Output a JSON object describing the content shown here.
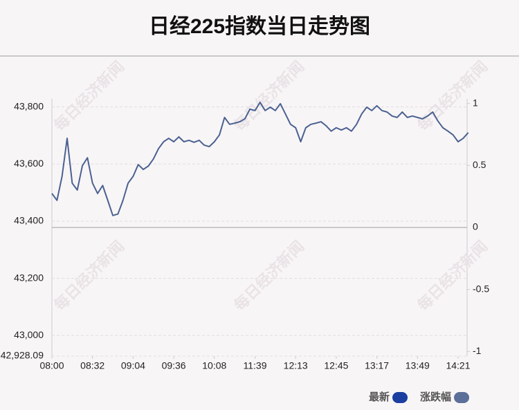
{
  "chart_data": {
    "type": "line",
    "title": "日经225指数当日走势图",
    "watermark": "每日经济新闻",
    "categories": [
      "08:00",
      null,
      null,
      null,
      null,
      null,
      null,
      null,
      "08:32",
      null,
      null,
      null,
      null,
      null,
      null,
      null,
      "09:04",
      null,
      null,
      null,
      null,
      null,
      null,
      null,
      "09:36",
      null,
      null,
      null,
      null,
      null,
      null,
      null,
      "10:08",
      null,
      null,
      null,
      null,
      null,
      null,
      null,
      "11:39",
      null,
      null,
      null,
      null,
      null,
      null,
      null,
      "12:13",
      null,
      null,
      null,
      null,
      null,
      null,
      null,
      "12:45",
      null,
      null,
      null,
      null,
      null,
      null,
      null,
      "13:17",
      null,
      null,
      null,
      null,
      null,
      null,
      null,
      "13:49",
      null,
      null,
      null,
      null,
      null,
      null,
      null,
      "14:21",
      null,
      null
    ],
    "series": [
      {
        "name": "最新",
        "color": "#4a6190",
        "values": [
          43497,
          43473,
          43557,
          43690,
          43533,
          43509,
          43594,
          43622,
          43533,
          43497,
          43525,
          43473,
          43420,
          43425,
          43473,
          43533,
          43557,
          43598,
          43581,
          43593,
          43618,
          43654,
          43678,
          43690,
          43678,
          43695,
          43678,
          43683,
          43676,
          43683,
          43666,
          43661,
          43678,
          43702,
          43763,
          43739,
          43743,
          43748,
          43758,
          43792,
          43787,
          43816,
          43787,
          43799,
          43787,
          43811,
          43775,
          43739,
          43727,
          43678,
          43727,
          43739,
          43743,
          43748,
          43734,
          43715,
          43727,
          43719,
          43727,
          43715,
          43739,
          43775,
          43799,
          43787,
          43804,
          43787,
          43782,
          43768,
          43763,
          43782,
          43763,
          43768,
          43763,
          43758,
          43768,
          43782,
          43751,
          43727,
          43715,
          43702,
          43678,
          43690,
          43710
        ]
      }
    ],
    "legend": [
      {
        "name": "最新",
        "color": "#1a3fa0"
      },
      {
        "name": "涨跌幅",
        "color": "#5b6f99"
      }
    ],
    "ylim": [
      42928.09,
      43828
    ],
    "yticks": [
      {
        "value": 42928.09,
        "label": "42,928.09"
      },
      {
        "value": 43000,
        "label": "43,000"
      },
      {
        "value": 43200,
        "label": "43,200"
      },
      {
        "value": 43400,
        "label": "43,400"
      },
      {
        "value": 43600,
        "label": "43,600"
      },
      {
        "value": 43800,
        "label": "43,800"
      }
    ],
    "y2lim": [
      -1.037,
      1.037
    ],
    "y2ticks": [
      -1,
      -0.5,
      0,
      0.5,
      1
    ],
    "grid": true
  }
}
